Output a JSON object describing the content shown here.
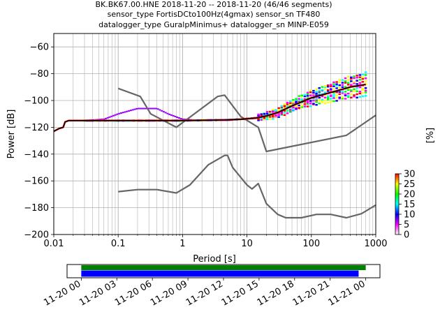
{
  "title_lines": [
    "BK.BK67.00.HNE   2018-11-20 -- 2018-11-20  (46/46 segments)",
    "sensor_type FortisDCto100Hz(4gmax) sensor_sn TF480",
    "datalogger_type GuralpMinimus+ datalogger_sn MINP-E059"
  ],
  "colorbar_label": "[%]",
  "colors": {
    "model_curve": "#666666",
    "mean_curve": "#000000",
    "mode_curve": "#ff0000",
    "grid": "#b0b0b0",
    "coverage_available": "#0000ff",
    "coverage_processed": "#008000"
  },
  "chart_data": [
    {
      "type": "heatmap",
      "name": "ppsd",
      "xlabel": "Period [s]",
      "ylabel": "Power [dB]",
      "xscale": "log",
      "xlim": [
        0.01,
        1000
      ],
      "ylim": [
        -200,
        -50
      ],
      "x_ticks": [
        {
          "value": 0.01,
          "label": "0.01"
        },
        {
          "value": 0.1,
          "label": "0.1"
        },
        {
          "value": 1,
          "label": "1"
        },
        {
          "value": 10,
          "label": "10"
        },
        {
          "value": 100,
          "label": "100"
        },
        {
          "value": 1000,
          "label": "1000"
        }
      ],
      "y_ticks": [
        -60,
        -80,
        -100,
        -120,
        -140,
        -160,
        -180,
        -200
      ],
      "grid": true,
      "colorbar": {
        "ticks": [
          0,
          5,
          10,
          15,
          20,
          25,
          30
        ],
        "range": [
          0,
          30
        ],
        "colormap": [
          "#ffffff",
          "#ff00ff",
          "#0000ff",
          "#00ffff",
          "#00ff00",
          "#ffff00",
          "#ff0000"
        ]
      },
      "model_curves": [
        {
          "points": [
            [
              0.1,
              -91
            ],
            [
              0.22,
              -97
            ],
            [
              0.32,
              -110
            ],
            [
              0.8,
              -120
            ],
            [
              3.5,
              -97
            ],
            [
              4.5,
              -96
            ],
            [
              8,
              -112
            ],
            [
              15,
              -120
            ],
            [
              20,
              -138
            ],
            [
              350,
              -126
            ],
            [
              1000,
              -111
            ]
          ]
        },
        {
          "points": [
            [
              0.1,
              -168
            ],
            [
              0.2,
              -166.5
            ],
            [
              0.4,
              -166.5
            ],
            [
              0.8,
              -169
            ],
            [
              1.3,
              -163
            ],
            [
              2.5,
              -148
            ],
            [
              4.5,
              -141
            ],
            [
              5,
              -141
            ],
            [
              6,
              -150
            ],
            [
              10,
              -163
            ],
            [
              12,
              -166
            ],
            [
              15,
              -162
            ],
            [
              20,
              -177
            ],
            [
              30,
              -185
            ],
            [
              40,
              -187.5
            ],
            [
              70,
              -187.5
            ],
            [
              120,
              -185
            ],
            [
              200,
              -185
            ],
            [
              350,
              -187.5
            ],
            [
              600,
              -184.5
            ],
            [
              1000,
              -178
            ]
          ]
        }
      ],
      "mean_curve": {
        "points": [
          [
            0.01,
            -123
          ],
          [
            0.012,
            -121
          ],
          [
            0.014,
            -120
          ],
          [
            0.015,
            -116
          ],
          [
            0.017,
            -115
          ],
          [
            0.1,
            -115
          ],
          [
            1,
            -115
          ],
          [
            5,
            -114.5
          ],
          [
            8,
            -114
          ],
          [
            14,
            -113
          ],
          [
            20,
            -111.5
          ],
          [
            30,
            -109
          ],
          [
            50,
            -104
          ],
          [
            100,
            -98
          ],
          [
            200,
            -94
          ],
          [
            400,
            -90
          ],
          [
            700,
            -88
          ]
        ]
      },
      "upper_band": {
        "points": [
          [
            0.03,
            -115
          ],
          [
            0.06,
            -114
          ],
          [
            0.1,
            -110
          ],
          [
            0.2,
            -106
          ],
          [
            0.4,
            -106
          ],
          [
            0.6,
            -110
          ],
          [
            1,
            -114
          ],
          [
            2,
            -115
          ]
        ]
      },
      "density_range_periods": [
        15,
        700
      ]
    },
    {
      "type": "bar",
      "name": "data-coverage",
      "x_ticks": [
        "11-20 00",
        "11-20 03",
        "11-20 06",
        "11-20 09",
        "11-20 12",
        "11-20 15",
        "11-20 18",
        "11-20 21",
        "11-21 00"
      ],
      "x_tick_hours": [
        0,
        3,
        6,
        9,
        12,
        15,
        18,
        21,
        24
      ],
      "xlim_hours": [
        -1.2,
        25.2
      ],
      "series": [
        {
          "key": "processed",
          "range_hours": [
            0,
            24.0
          ]
        },
        {
          "key": "available",
          "range_hours": [
            0,
            23.4
          ]
        }
      ]
    }
  ]
}
